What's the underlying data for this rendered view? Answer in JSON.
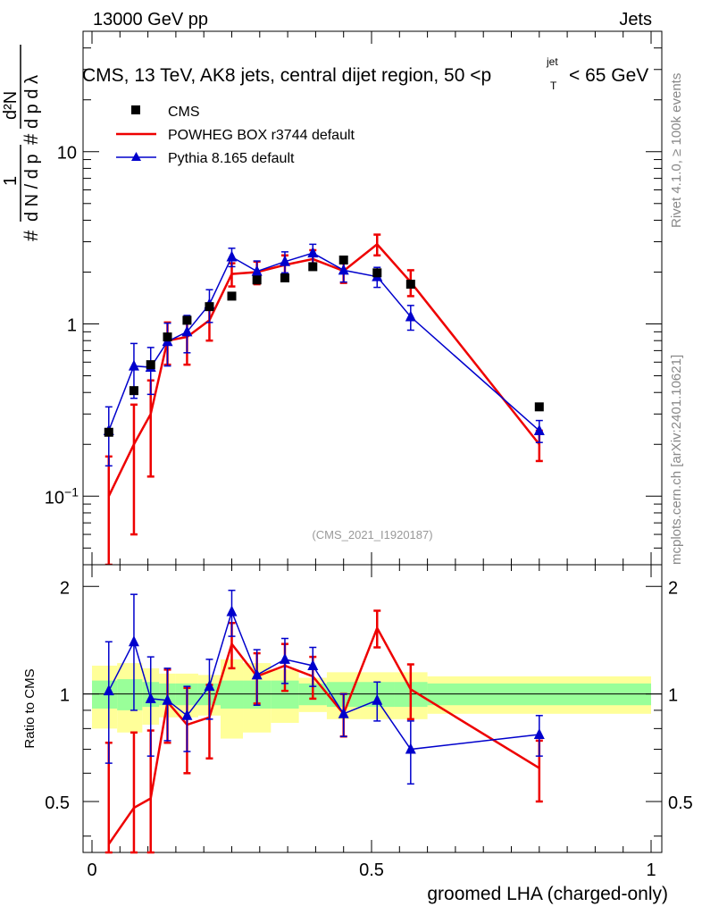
{
  "header": {
    "left": "13000 GeV pp",
    "right": "Jets"
  },
  "title": {
    "main": "CMS, 13 TeV, AK8 jets, central dijet region, 50 <p",
    "sup": "jet",
    "sub": "T",
    "end": "< 65 GeV"
  },
  "side_texts": {
    "rivet": "Rivet 4.1.0, ≥ 100k events",
    "mcplots": "mcplots.cern.ch [arXiv:2401.10621]"
  },
  "watermark": "(CMS_2021_I1920187)",
  "colors": {
    "data": "#000000",
    "powheg": "#ee0000",
    "pythia": "#0000cc",
    "band_outer": "#ffff99",
    "band_inner": "#99ff99"
  },
  "chart_data": [
    {
      "type": "scatter",
      "panel": "main",
      "yscale": "log",
      "xlim": [
        0,
        1
      ],
      "ylim": [
        0.04,
        50
      ],
      "ylabel": "1/(dN/dp_T) d²N/(dp_T dλ)",
      "y_tick_labels": [
        "10",
        "1",
        "10^-1"
      ],
      "y_ticks": [
        10,
        1,
        0.1
      ],
      "x": [
        0.03,
        0.075,
        0.105,
        0.135,
        0.17,
        0.21,
        0.25,
        0.295,
        0.345,
        0.395,
        0.45,
        0.51,
        0.57,
        0.8
      ],
      "series": [
        {
          "name": "CMS",
          "marker": "square",
          "values": [
            0.235,
            0.41,
            0.58,
            0.84,
            1.05,
            1.26,
            1.45,
            1.8,
            1.85,
            2.15,
            2.35,
            1.98,
            1.7,
            0.33
          ],
          "err_lo": [
            0,
            0,
            0,
            0,
            0,
            0,
            0,
            0,
            0,
            0,
            0,
            0,
            0,
            0
          ],
          "err_hi": [
            0,
            0,
            0,
            0,
            0,
            0,
            0,
            0,
            0,
            0,
            0,
            0,
            0,
            0
          ]
        },
        {
          "name": "POWHEG BOX r3744 default",
          "marker": "line",
          "values": [
            0.1,
            0.2,
            0.3,
            0.8,
            0.84,
            1.05,
            1.95,
            2.0,
            2.2,
            2.38,
            2.03,
            2.9,
            1.75,
            0.2
          ],
          "err_lo": [
            0.07,
            0.14,
            0.17,
            0.22,
            0.26,
            0.25,
            0.3,
            0.3,
            0.3,
            0.3,
            0.3,
            0.4,
            0.3,
            0.04
          ],
          "err_hi": [
            0.07,
            0.14,
            0.17,
            0.22,
            0.26,
            0.25,
            0.3,
            0.3,
            0.3,
            0.3,
            0.3,
            0.4,
            0.3,
            0.04
          ]
        },
        {
          "name": "Pythia 8.165 default",
          "marker": "triangle",
          "values": [
            0.24,
            0.57,
            0.56,
            0.79,
            0.9,
            1.3,
            2.45,
            2.02,
            2.3,
            2.58,
            2.05,
            1.88,
            1.1,
            0.24
          ],
          "err_lo": [
            0.09,
            0.2,
            0.17,
            0.22,
            0.22,
            0.28,
            0.3,
            0.3,
            0.32,
            0.32,
            0.3,
            0.25,
            0.18,
            0.035
          ],
          "err_hi": [
            0.09,
            0.2,
            0.17,
            0.22,
            0.22,
            0.28,
            0.3,
            0.3,
            0.32,
            0.32,
            0.3,
            0.25,
            0.18,
            0.035
          ]
        }
      ],
      "legend": [
        "CMS",
        "POWHEG BOX r3744 default",
        "Pythia 8.165 default"
      ],
      "legend_position": "top-left"
    },
    {
      "type": "line",
      "panel": "ratio",
      "xlim": [
        0,
        1
      ],
      "ylim": [
        0.36,
        2.3
      ],
      "xlabel": "groomed LHA (charged-only)",
      "ylabel": "Ratio to CMS",
      "x_tick_labels": [
        "0",
        "0.5",
        "1"
      ],
      "x_ticks": [
        0,
        0.5,
        1
      ],
      "y_tick_labels": [
        "0.5",
        "1",
        "2"
      ],
      "y_ticks": [
        0.5,
        1,
        2
      ],
      "x": [
        0.03,
        0.075,
        0.105,
        0.135,
        0.17,
        0.21,
        0.25,
        0.295,
        0.345,
        0.395,
        0.45,
        0.51,
        0.57,
        0.8
      ],
      "bands": {
        "edges": [
          0,
          0.045,
          0.09,
          0.12,
          0.15,
          0.19,
          0.23,
          0.27,
          0.32,
          0.37,
          0.42,
          0.48,
          0.54,
          0.6,
          1.0
        ],
        "inner_lo": [
          0.91,
          0.9,
          0.92,
          0.93,
          0.93,
          0.93,
          0.91,
          0.91,
          0.91,
          0.93,
          0.92,
          0.92,
          0.92,
          0.93
        ],
        "inner_hi": [
          1.09,
          1.1,
          1.08,
          1.07,
          1.07,
          1.07,
          1.09,
          1.09,
          1.09,
          1.07,
          1.08,
          1.08,
          1.08,
          1.07
        ],
        "outer_lo": [
          0.8,
          0.78,
          0.82,
          0.86,
          0.86,
          0.87,
          0.75,
          0.78,
          0.83,
          0.89,
          0.85,
          0.85,
          0.85,
          0.88
        ],
        "outer_hi": [
          1.2,
          1.22,
          1.18,
          1.14,
          1.14,
          1.13,
          1.25,
          1.22,
          1.17,
          1.11,
          1.15,
          1.15,
          1.15,
          1.12
        ]
      },
      "series": [
        {
          "name": "POWHEG BOX r3744 default",
          "values": [
            0.38,
            0.48,
            0.51,
            0.95,
            0.82,
            0.86,
            1.38,
            1.12,
            1.2,
            1.12,
            0.88,
            1.53,
            1.03,
            0.62
          ],
          "err_lo": [
            0.35,
            0.3,
            0.28,
            0.22,
            0.22,
            0.2,
            0.2,
            0.18,
            0.18,
            0.15,
            0.12,
            0.18,
            0.18,
            0.12
          ],
          "err_hi": [
            0.35,
            0.3,
            0.28,
            0.22,
            0.22,
            0.2,
            0.2,
            0.18,
            0.18,
            0.15,
            0.12,
            0.18,
            0.18,
            0.12
          ]
        },
        {
          "name": "Pythia 8.165 default",
          "values": [
            1.02,
            1.4,
            0.97,
            0.96,
            0.87,
            1.05,
            1.7,
            1.13,
            1.25,
            1.2,
            0.88,
            0.96,
            0.7,
            0.77
          ],
          "err_lo": [
            0.38,
            0.5,
            0.3,
            0.22,
            0.18,
            0.2,
            0.25,
            0.2,
            0.18,
            0.15,
            0.12,
            0.12,
            0.14,
            0.1
          ],
          "err_hi": [
            0.38,
            0.5,
            0.3,
            0.22,
            0.18,
            0.2,
            0.25,
            0.2,
            0.18,
            0.15,
            0.12,
            0.12,
            0.14,
            0.1
          ]
        }
      ]
    }
  ]
}
